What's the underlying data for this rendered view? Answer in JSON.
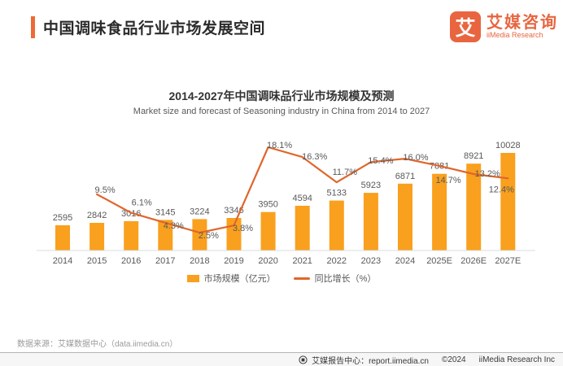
{
  "header": {
    "title": "中国调味食品行业市场发展空间",
    "logo": {
      "mark": "艾",
      "name_cn": "艾媒咨询",
      "name_en": "iiMedia Research"
    }
  },
  "chart_data": {
    "type": "bar",
    "title": "2014-2027年中国调味品行业市场规模及预测",
    "subtitle": "Market size and forecast of Seasoning industry in China from 2014 to 2027",
    "categories": [
      "2014",
      "2015",
      "2016",
      "2017",
      "2018",
      "2019",
      "2020",
      "2021",
      "2022",
      "2023",
      "2024",
      "2025E",
      "2026E",
      "2027E"
    ],
    "series": [
      {
        "name": "市场规模（亿元）",
        "type": "bar",
        "values": [
          2595,
          2842,
          3016,
          3145,
          3224,
          3346,
          3950,
          4594,
          5133,
          5923,
          6871,
          7881,
          8921,
          10028
        ]
      },
      {
        "name": "同比增长（%）",
        "type": "line",
        "values": [
          null,
          9.5,
          6.1,
          4.3,
          2.5,
          3.8,
          18.1,
          16.3,
          11.7,
          15.4,
          16.0,
          14.7,
          13.2,
          12.4
        ],
        "labels": [
          "",
          "9.5%",
          "6.1%",
          "4.3%",
          "2.5%",
          "3.8%",
          "18.1%",
          "16.3%",
          "11.7%",
          "15.4%",
          "16.0%",
          "14.7%",
          "13.2%",
          "12.4%"
        ]
      }
    ],
    "colors": {
      "bar": "#F9A01E",
      "line": "#E0662B",
      "accent": "#ED6A36"
    },
    "y_axis_left_range": [
      0,
      10028
    ],
    "legend_position": "bottom",
    "grid": false
  },
  "source_note": "数据来源：艾媒数据中心（data.iimedia.cn）",
  "footer": {
    "report_center": "艾媒报告中心：report.iimedia.cn",
    "copyright": "©2024",
    "company": "iiMedia Research Inc"
  }
}
